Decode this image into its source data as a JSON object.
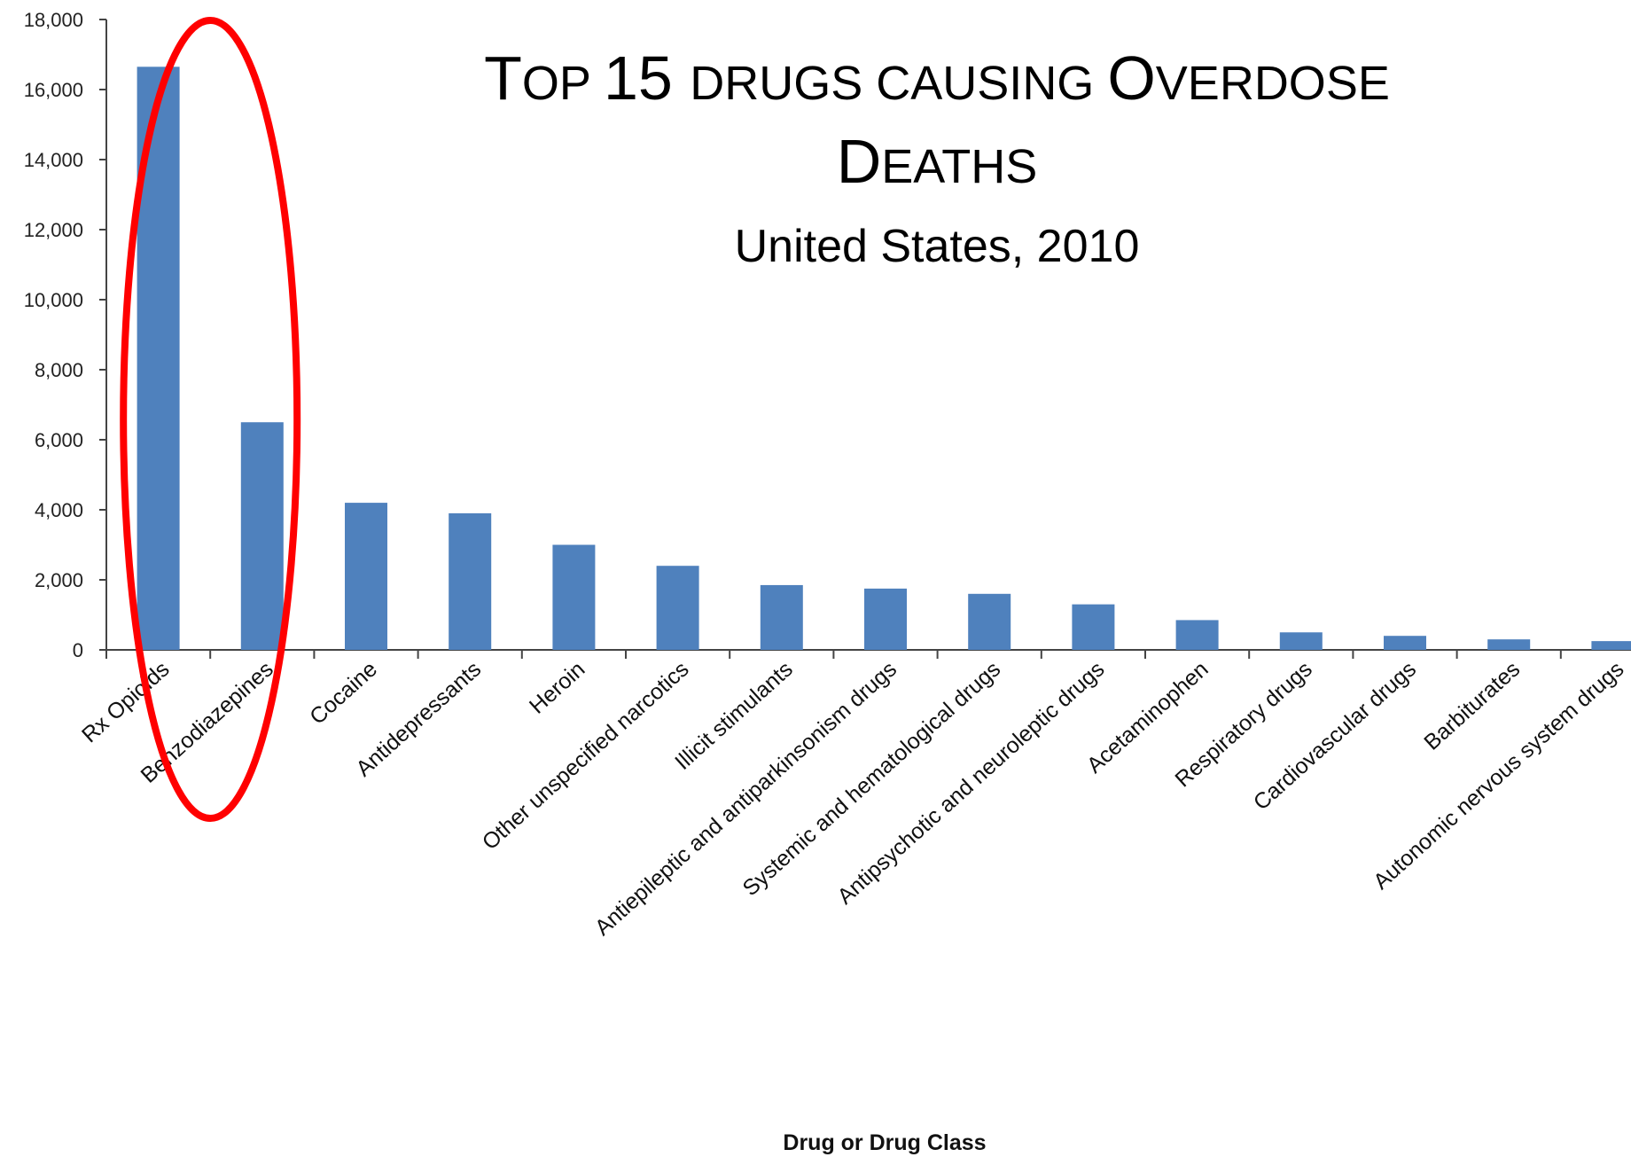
{
  "chart_data": {
    "type": "bar",
    "title_lines": [
      [
        {
          "text": "T",
          "big": true
        },
        {
          "text": "OP 15 ",
          "big": false
        },
        {
          "text": "15",
          "big": true,
          "skip": true
        }
      ],
      []
    ],
    "title": "Top 15 drugs causing Overdose Deaths",
    "subtitle": "United States, 2010",
    "xlabel": "Drug or Drug Class",
    "ylabel": "",
    "ylim": [
      0,
      18000
    ],
    "yticks": [
      0,
      2000,
      4000,
      6000,
      8000,
      10000,
      12000,
      14000,
      16000,
      18000
    ],
    "ytick_labels": [
      "0",
      "2,000",
      "4,000",
      "6,000",
      "8,000",
      "10,000",
      "12,000",
      "14,000",
      "16,000",
      "18,000"
    ],
    "categories": [
      "Rx Opioids",
      "Benzodiazepines",
      "Cocaine",
      "Antidepressants",
      "Heroin",
      "Other unspecified narcotics",
      "Illicit stimulants",
      "Antiepileptic and antiparkinsonism drugs",
      "Systemic and hematological drugs",
      "Antipsychotic and neuroleptic drugs",
      "Acetaminophen",
      "Respiratory drugs",
      "Cardiovascular drugs",
      "Barbiturates",
      "Autonomic nervous system drugs"
    ],
    "values": [
      16650,
      6500,
      4200,
      3900,
      3000,
      2400,
      1850,
      1750,
      1600,
      1300,
      850,
      500,
      400,
      300,
      250
    ],
    "bar_color": "#4f81bd",
    "highlight_color": "#ff0000",
    "highlight_categories": [
      "Rx Opioids",
      "Benzodiazepines"
    ],
    "grid": false,
    "legend": "none"
  }
}
